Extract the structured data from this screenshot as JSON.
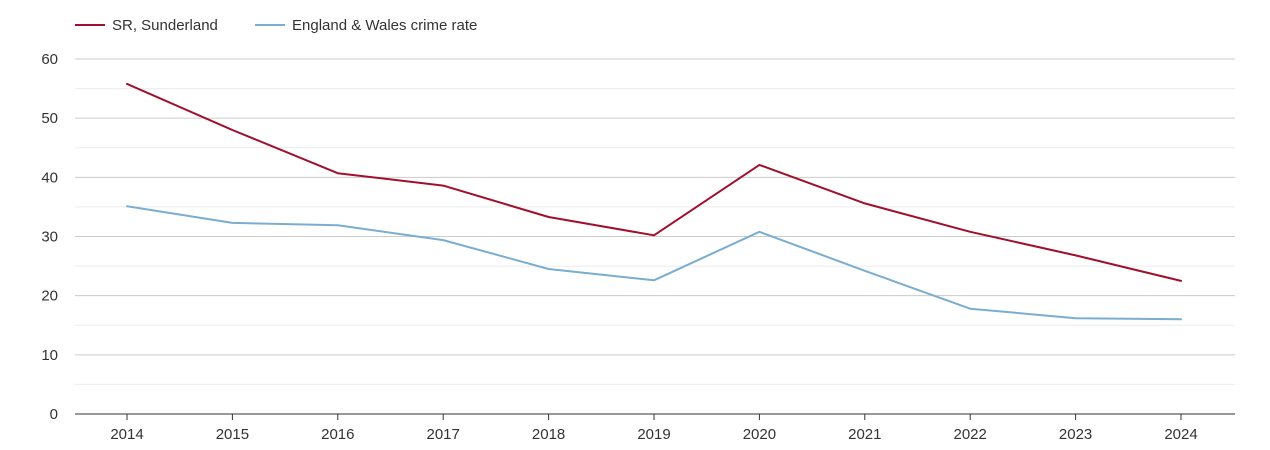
{
  "chart_data": {
    "type": "line",
    "title": "",
    "xlabel": "",
    "ylabel": "",
    "x": [
      "2014",
      "2015",
      "2016",
      "2017",
      "2018",
      "2019",
      "2020",
      "2021",
      "2022",
      "2023",
      "2024"
    ],
    "ylim": [
      0,
      60
    ],
    "yticks": [
      0,
      10,
      20,
      30,
      40,
      50,
      60
    ],
    "grid": true,
    "legend_position": "top-left",
    "series": [
      {
        "name": "SR, Sunderland",
        "color": "#a0102e",
        "values": [
          55.8,
          48.0,
          40.7,
          38.6,
          33.3,
          30.2,
          42.1,
          35.6,
          30.8,
          26.8,
          22.5
        ]
      },
      {
        "name": "England & Wales crime rate",
        "color": "#7aadcf",
        "values": [
          35.1,
          32.3,
          31.9,
          29.4,
          24.5,
          22.6,
          30.8,
          24.2,
          17.8,
          16.2,
          16.0
        ]
      }
    ]
  }
}
